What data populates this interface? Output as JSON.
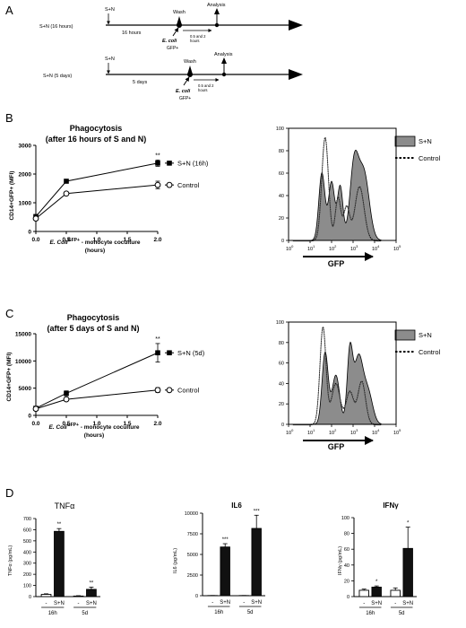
{
  "panels": {
    "A": {
      "label": "A",
      "timeline_16h": {
        "start_label": "S+N (16 hours)",
        "sn_marker": "S+N",
        "duration": "16 hours",
        "wash": "Wash",
        "analysis": "Analysis",
        "ecoli": "E. coli",
        "ecoli_sup": "GFP+",
        "interval_line1": "0.5 and 2",
        "interval_line2": "hours"
      },
      "timeline_5d": {
        "start_label": "S+N (5 days)",
        "sn_marker": "S+N",
        "duration": "5 days",
        "wash": "Wash",
        "analysis": "Analysis",
        "ecoli": "E. coli",
        "ecoli_sup": "GFP+",
        "interval_line1": "0.5 and 2",
        "interval_line2": "hours"
      }
    },
    "B": {
      "label": "B"
    },
    "C": {
      "label": "C"
    },
    "D": {
      "label": "D"
    }
  },
  "chart_data": [
    {
      "id": "B-line",
      "type": "line",
      "title_line1": "Phagocytosis",
      "title_line2": "(after 16 hours of S and N)",
      "ylabel": "CD14+GFP+ (MFI)",
      "xlabel_part1": "E. Coli",
      "xlabel_sup": "GFP+",
      "xlabel_part2": " - monocyte coculture",
      "xlabel_line2": "(hours)",
      "x": [
        0,
        0.5,
        2
      ],
      "xticks": [
        "0.0",
        "0.5",
        "1.0",
        "1.5",
        "2.0"
      ],
      "ylim": [
        0,
        3000
      ],
      "yticks": [
        "0",
        "1000",
        "2000",
        "3000"
      ],
      "series": [
        {
          "name": "S+N (16h)",
          "marker": "filled-square",
          "values": [
            520,
            1750,
            2380
          ],
          "errors": [
            60,
            50,
            110
          ]
        },
        {
          "name": "Control",
          "marker": "open-circle",
          "values": [
            450,
            1320,
            1620
          ],
          "errors": [
            60,
            60,
            130
          ]
        }
      ],
      "annotations": [
        "**"
      ]
    },
    {
      "id": "B-hist",
      "type": "area",
      "xlabel": "GFP",
      "yticks": [
        "0",
        "20",
        "40",
        "60",
        "80",
        "100"
      ],
      "xticks": [
        "10",
        "10",
        "10",
        "10",
        "10",
        "10"
      ],
      "xtick_exponents": [
        "0",
        "1",
        "2",
        "3",
        "4",
        "5"
      ],
      "legend": [
        "S+N",
        "Control"
      ]
    },
    {
      "id": "C-line",
      "type": "line",
      "title_line1": "Phagocytosis",
      "title_line2": "(after 5 days of S and N)",
      "ylabel": "CD14+GFP+ (MFI)",
      "xlabel_part1": "E. Coli",
      "xlabel_sup": "GFP+",
      "xlabel_part2": " - monocyte coculture",
      "xlabel_line2": "(hours)",
      "x": [
        0,
        0.5,
        2
      ],
      "xticks": [
        "0.0",
        "0.5",
        "1.0",
        "1.5",
        "2.0"
      ],
      "ylim": [
        0,
        15000
      ],
      "yticks": [
        "0",
        "5000",
        "10000",
        "15000"
      ],
      "series": [
        {
          "name": "S+N (5d)",
          "marker": "filled-square",
          "values": [
            1300,
            4050,
            11500
          ],
          "errors": [
            250,
            450,
            1700
          ]
        },
        {
          "name": "Control",
          "marker": "open-circle",
          "values": [
            1200,
            2950,
            4650
          ],
          "errors": [
            200,
            300,
            450
          ]
        }
      ],
      "annotations": [
        "**"
      ]
    },
    {
      "id": "C-hist",
      "type": "area",
      "xlabel": "GFP",
      "yticks": [
        "0",
        "20",
        "40",
        "60",
        "80",
        "100"
      ],
      "xticks": [
        "10",
        "10",
        "10",
        "10",
        "10",
        "10"
      ],
      "xtick_exponents": [
        "0",
        "1",
        "2",
        "3",
        "4",
        "5"
      ],
      "legend": [
        "S+N",
        "Control"
      ]
    },
    {
      "id": "D-tnfa",
      "type": "bar",
      "title": "TNFα",
      "ylabel": "TNFα (pg/mL)",
      "ylim": [
        0,
        700
      ],
      "yticks": [
        "0",
        "100",
        "200",
        "300",
        "400",
        "500",
        "600",
        "700"
      ],
      "categories": [
        "-",
        "S+N",
        "-",
        "S+N"
      ],
      "groups": [
        "16h",
        "5d"
      ],
      "values": [
        20,
        585,
        5,
        65
      ],
      "errors": [
        5,
        25,
        3,
        20
      ],
      "fills": [
        "white",
        "black",
        "white",
        "black"
      ],
      "stars": [
        "",
        "**",
        "",
        "**"
      ]
    },
    {
      "id": "D-il6",
      "type": "bar",
      "title": "IL6",
      "ylabel": "IL6 (pg/mL)",
      "ylim": [
        0,
        10000
      ],
      "yticks": [
        "0",
        "2500",
        "5000",
        "7500",
        "10000"
      ],
      "categories": [
        "-",
        "S+N",
        "-",
        "S+N"
      ],
      "groups": [
        "16h",
        "5d"
      ],
      "values": [
        20,
        5900,
        20,
        8150
      ],
      "errors": [
        5,
        400,
        5,
        1600
      ],
      "fills": [
        "white",
        "black",
        "white",
        "black"
      ],
      "stars": [
        "",
        "***",
        "",
        "***"
      ]
    },
    {
      "id": "D-ifng",
      "type": "bar",
      "title": "IFNγ",
      "ylabel": "IFNγ (pg/mL)",
      "ylim": [
        0,
        100
      ],
      "yticks": [
        "0",
        "20",
        "40",
        "60",
        "80",
        "100"
      ],
      "categories": [
        "-",
        "S+N",
        "-",
        "S+N"
      ],
      "groups": [
        "16h",
        "5d"
      ],
      "values": [
        8,
        12,
        8,
        61
      ],
      "errors": [
        1.5,
        1.5,
        3,
        27
      ],
      "fills": [
        "white",
        "black",
        "white",
        "black"
      ],
      "stars": [
        "",
        "*",
        "",
        "*"
      ]
    }
  ]
}
